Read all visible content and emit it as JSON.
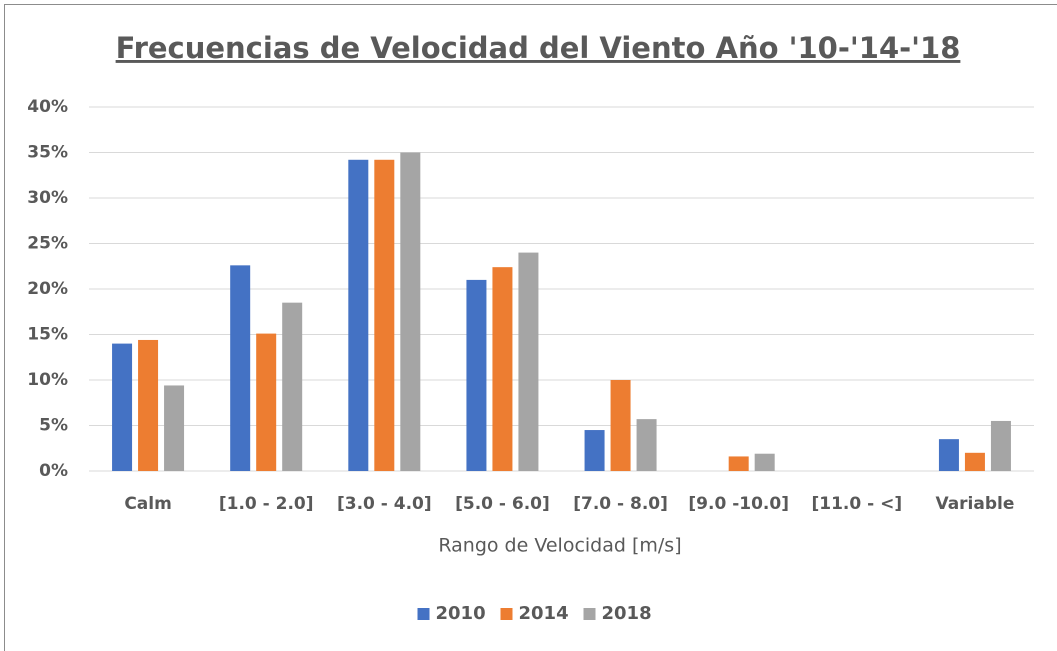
{
  "chart_data": {
    "type": "bar",
    "title": "Frecuencias de Velocidad del Viento Año '10-'14-'18",
    "x_label": "Rango de Velocidad [m/s]",
    "categories": [
      "Calm",
      "[1.0 - 2.0]",
      "[3.0 - 4.0]",
      "[5.0 - 6.0]",
      "[7.0 - 8.0]",
      "[9.0 -10.0]",
      "[11.0 - <]",
      "Variable"
    ],
    "series": [
      {
        "name": "2010",
        "color": "#4472c4",
        "values": [
          14.0,
          22.6,
          34.2,
          21.0,
          4.5,
          0,
          0,
          3.5
        ]
      },
      {
        "name": "2014",
        "color": "#ed7d31",
        "values": [
          14.4,
          15.1,
          34.2,
          22.4,
          10.0,
          1.6,
          0,
          2.0
        ]
      },
      {
        "name": "2018",
        "color": "#a5a5a5",
        "values": [
          9.4,
          18.5,
          35.0,
          24.0,
          5.7,
          1.9,
          0,
          5.5
        ]
      }
    ],
    "ylim": [
      0,
      40
    ],
    "yticks": [
      {
        "value": 0,
        "label": "0%"
      },
      {
        "value": 5,
        "label": "5%"
      },
      {
        "value": 10,
        "label": "10%"
      },
      {
        "value": 15,
        "label": "15%"
      },
      {
        "value": 20,
        "label": "20%"
      },
      {
        "value": 25,
        "label": "25%"
      },
      {
        "value": 30,
        "label": "30%"
      },
      {
        "value": 35,
        "label": "35%"
      },
      {
        "value": 40,
        "label": "40%"
      }
    ],
    "grid": true,
    "legend": "bottom"
  }
}
